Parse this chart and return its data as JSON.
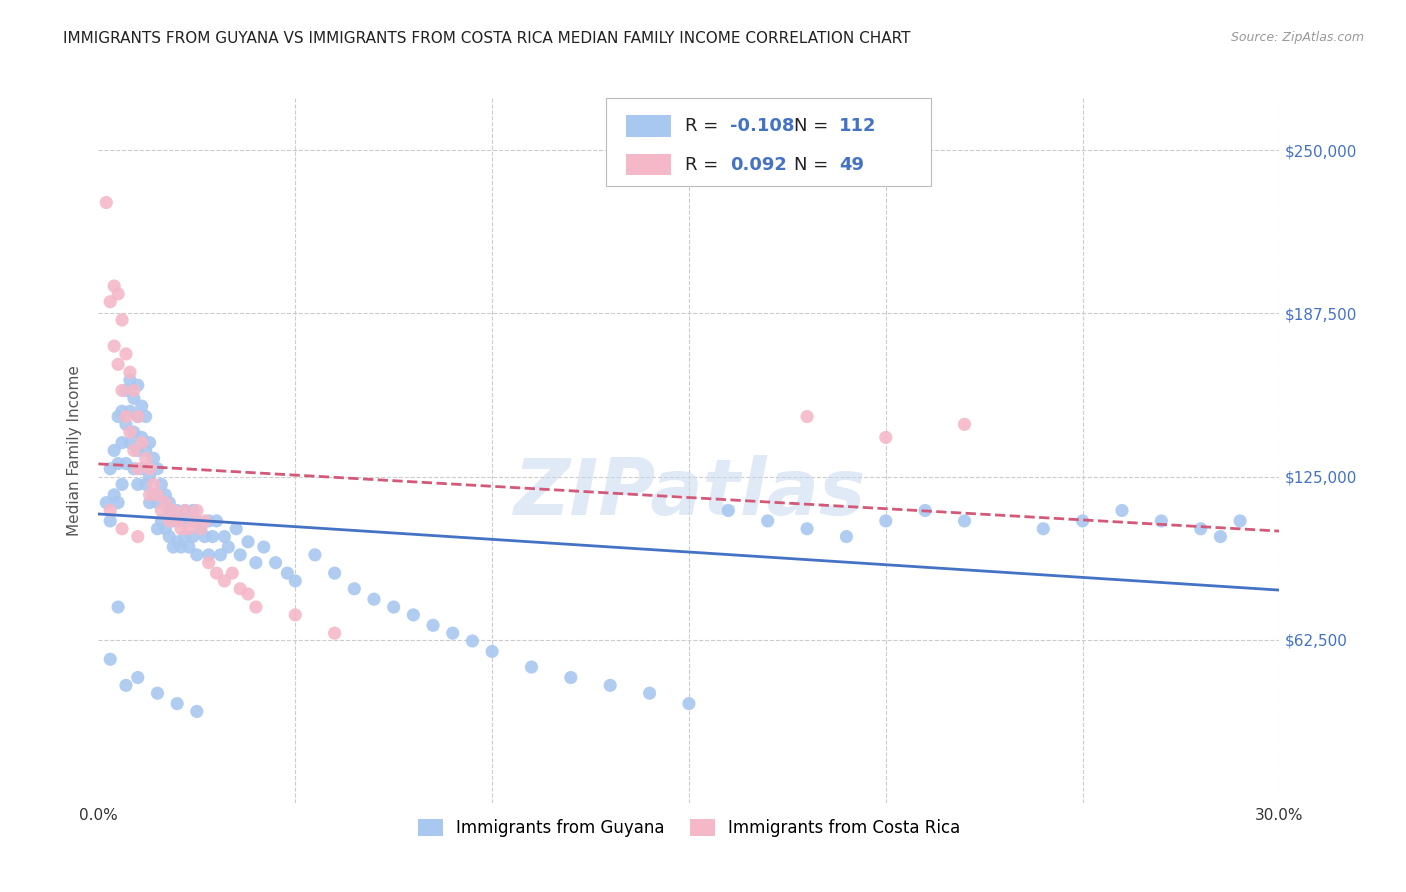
{
  "title": "IMMIGRANTS FROM GUYANA VS IMMIGRANTS FROM COSTA RICA MEDIAN FAMILY INCOME CORRELATION CHART",
  "source": "Source: ZipAtlas.com",
  "ylabel": "Median Family Income",
  "xlim": [
    0.0,
    0.3
  ],
  "ylim": [
    0,
    270000
  ],
  "yticks": [
    62500,
    125000,
    187500,
    250000
  ],
  "ytick_labels": [
    "$62,500",
    "$125,000",
    "$187,500",
    "$250,000"
  ],
  "xticks": [
    0.0,
    0.05,
    0.1,
    0.15,
    0.2,
    0.25,
    0.3
  ],
  "xtick_labels": [
    "0.0%",
    "",
    "",
    "",
    "",
    "",
    "30.0%"
  ],
  "guyana_R": "-0.108",
  "guyana_N": "112",
  "costarica_R": "0.092",
  "costarica_N": "49",
  "guyana_color": "#a8c8f0",
  "costarica_color": "#f4b8c8",
  "guyana_line_color": "#4472c4",
  "costarica_line_color": "#d45878",
  "background_color": "#ffffff",
  "watermark_color": "#c8d8f0",
  "grid_color": "#cccccc",
  "title_fontsize": 11,
  "axis_label_fontsize": 11,
  "tick_fontsize": 11,
  "guyana_x": [
    0.002,
    0.003,
    0.003,
    0.004,
    0.004,
    0.005,
    0.005,
    0.005,
    0.006,
    0.006,
    0.006,
    0.007,
    0.007,
    0.007,
    0.008,
    0.008,
    0.008,
    0.009,
    0.009,
    0.009,
    0.01,
    0.01,
    0.01,
    0.01,
    0.011,
    0.011,
    0.011,
    0.012,
    0.012,
    0.012,
    0.013,
    0.013,
    0.013,
    0.014,
    0.014,
    0.015,
    0.015,
    0.015,
    0.016,
    0.016,
    0.017,
    0.017,
    0.018,
    0.018,
    0.018,
    0.019,
    0.019,
    0.02,
    0.02,
    0.021,
    0.021,
    0.022,
    0.022,
    0.023,
    0.023,
    0.024,
    0.024,
    0.025,
    0.025,
    0.026,
    0.027,
    0.028,
    0.028,
    0.029,
    0.03,
    0.031,
    0.032,
    0.033,
    0.035,
    0.036,
    0.038,
    0.04,
    0.042,
    0.045,
    0.048,
    0.05,
    0.055,
    0.06,
    0.065,
    0.07,
    0.075,
    0.08,
    0.085,
    0.09,
    0.095,
    0.1,
    0.11,
    0.12,
    0.13,
    0.14,
    0.15,
    0.16,
    0.17,
    0.18,
    0.19,
    0.2,
    0.21,
    0.22,
    0.24,
    0.25,
    0.26,
    0.27,
    0.28,
    0.285,
    0.29,
    0.005,
    0.01,
    0.015,
    0.02,
    0.025,
    0.003,
    0.007
  ],
  "guyana_y": [
    115000,
    128000,
    108000,
    135000,
    118000,
    148000,
    130000,
    115000,
    150000,
    138000,
    122000,
    158000,
    145000,
    130000,
    162000,
    150000,
    138000,
    155000,
    142000,
    128000,
    160000,
    148000,
    135000,
    122000,
    152000,
    140000,
    128000,
    148000,
    135000,
    122000,
    138000,
    125000,
    115000,
    132000,
    118000,
    128000,
    115000,
    105000,
    122000,
    108000,
    118000,
    105000,
    115000,
    102000,
    112000,
    108000,
    98000,
    112000,
    100000,
    108000,
    98000,
    112000,
    102000,
    108000,
    98000,
    112000,
    102000,
    108000,
    95000,
    105000,
    102000,
    108000,
    95000,
    102000,
    108000,
    95000,
    102000,
    98000,
    105000,
    95000,
    100000,
    92000,
    98000,
    92000,
    88000,
    85000,
    95000,
    88000,
    82000,
    78000,
    75000,
    72000,
    68000,
    65000,
    62000,
    58000,
    52000,
    48000,
    45000,
    42000,
    38000,
    112000,
    108000,
    105000,
    102000,
    108000,
    112000,
    108000,
    105000,
    108000,
    112000,
    108000,
    105000,
    102000,
    108000,
    75000,
    48000,
    42000,
    38000,
    35000,
    55000,
    45000
  ],
  "costarica_x": [
    0.002,
    0.003,
    0.004,
    0.004,
    0.005,
    0.005,
    0.006,
    0.006,
    0.007,
    0.007,
    0.008,
    0.008,
    0.009,
    0.009,
    0.01,
    0.01,
    0.011,
    0.012,
    0.013,
    0.013,
    0.014,
    0.015,
    0.016,
    0.017,
    0.018,
    0.019,
    0.02,
    0.021,
    0.022,
    0.023,
    0.024,
    0.025,
    0.026,
    0.027,
    0.028,
    0.03,
    0.032,
    0.034,
    0.036,
    0.038,
    0.04,
    0.05,
    0.06,
    0.18,
    0.2,
    0.22,
    0.003,
    0.006,
    0.01
  ],
  "costarica_y": [
    230000,
    192000,
    198000,
    175000,
    195000,
    168000,
    185000,
    158000,
    172000,
    148000,
    165000,
    142000,
    158000,
    135000,
    148000,
    128000,
    138000,
    132000,
    128000,
    118000,
    122000,
    118000,
    112000,
    115000,
    108000,
    112000,
    108000,
    105000,
    112000,
    105000,
    108000,
    112000,
    105000,
    108000,
    92000,
    88000,
    85000,
    88000,
    82000,
    80000,
    75000,
    72000,
    65000,
    148000,
    140000,
    145000,
    112000,
    105000,
    102000
  ]
}
